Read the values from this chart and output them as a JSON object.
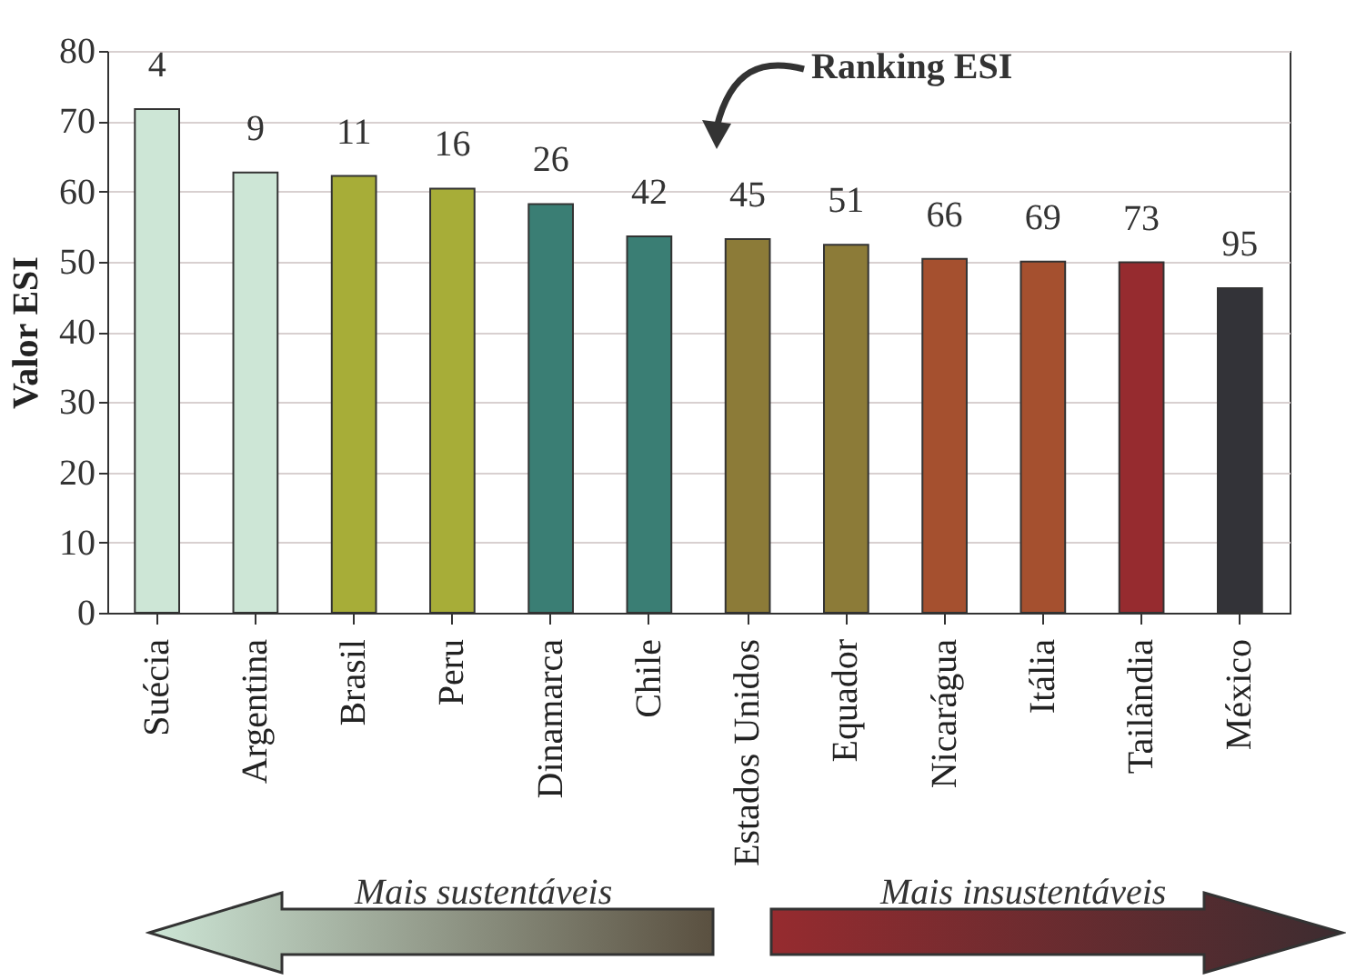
{
  "chart_data": {
    "type": "bar",
    "ylabel": "Valor ESI",
    "categories": [
      "Suécia",
      "Argentina",
      "Brasil",
      "Peru",
      "Dinamarca",
      "Chile",
      "Estados Unidos",
      "Equador",
      "Nicarágua",
      "Itália",
      "Tailândia",
      "México"
    ],
    "values": [
      71.7,
      62.7,
      62.2,
      60.4,
      58.2,
      53.6,
      53.2,
      52.4,
      50.4,
      50.0,
      49.9,
      46.2
    ],
    "colors": [
      "#cde6d6",
      "#cde6d6",
      "#a7ad38",
      "#a7ad38",
      "#3a7e74",
      "#3a7e74",
      "#8c7b38",
      "#8c7b38",
      "#a5502f",
      "#a5502f",
      "#962b2f",
      "#333338"
    ],
    "ylim": [
      0,
      80
    ],
    "yticks": [
      0,
      10,
      20,
      30,
      40,
      50,
      60,
      70,
      80
    ],
    "grid": "y",
    "annotations": [
      "Ranking ESI",
      "Mais sustentáveis",
      "Mais insustentáveis",
      {
        "text": "4",
        "x": "Suécia",
        "y": 71.7
      },
      {
        "text": "9",
        "x": "Argentina",
        "y": 62.7
      },
      {
        "text": "11",
        "x": "Brasil",
        "y": 62.2
      },
      {
        "text": "16",
        "x": "Peru",
        "y": 60.4
      },
      {
        "text": "26",
        "x": "Dinamarca",
        "y": 58.2
      },
      {
        "text": "42",
        "x": "Chile",
        "y": 53.6
      },
      {
        "text": "45",
        "x": "Estados Unidos",
        "y": 53.2
      },
      {
        "text": "51",
        "x": "Equador",
        "y": 52.4
      },
      {
        "text": "66",
        "x": "Nicarágua",
        "y": 50.4
      },
      {
        "text": "69",
        "x": "Itália",
        "y": 50.0
      },
      {
        "text": "73",
        "x": "Tailândia",
        "y": 49.9
      },
      {
        "text": "95",
        "x": "México",
        "y": 46.2
      }
    ]
  }
}
